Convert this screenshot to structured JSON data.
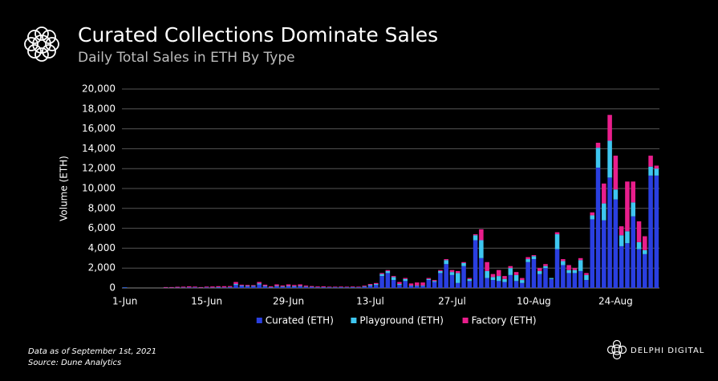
{
  "chart_data": {
    "type": "bar",
    "stacked": true,
    "title": "Curated Collections Dominate Sales",
    "subtitle": "Daily Total Sales in ETH By Type",
    "y_label": "Volume (ETH)",
    "categories": [
      "1-Jun",
      null,
      null,
      null,
      null,
      null,
      null,
      null,
      null,
      null,
      null,
      null,
      null,
      null,
      "15-Jun",
      null,
      null,
      null,
      null,
      null,
      null,
      null,
      null,
      null,
      null,
      null,
      null,
      null,
      "29-Jun",
      null,
      null,
      null,
      null,
      null,
      null,
      null,
      null,
      null,
      null,
      null,
      null,
      null,
      "13-Jul",
      null,
      null,
      null,
      null,
      null,
      null,
      null,
      null,
      null,
      null,
      null,
      null,
      null,
      "27-Jul",
      null,
      null,
      null,
      null,
      null,
      null,
      null,
      null,
      null,
      null,
      null,
      null,
      null,
      "10-Aug",
      null,
      null,
      null,
      null,
      null,
      null,
      null,
      null,
      null,
      null,
      null,
      null,
      null,
      "24-Aug",
      null,
      null,
      null,
      null,
      null,
      null,
      null
    ],
    "series": [
      {
        "name": "Curated (ETH)",
        "color": "#2a3fe0",
        "values": [
          60,
          0,
          0,
          0,
          0,
          0,
          0,
          20,
          20,
          30,
          30,
          40,
          40,
          20,
          40,
          30,
          50,
          40,
          60,
          300,
          200,
          150,
          150,
          350,
          150,
          50,
          150,
          100,
          150,
          120,
          150,
          100,
          80,
          50,
          60,
          50,
          50,
          60,
          50,
          60,
          50,
          100,
          200,
          300,
          1200,
          1500,
          800,
          300,
          700,
          200,
          200,
          200,
          800,
          600,
          1500,
          2400,
          1300,
          500,
          2200,
          700,
          4800,
          3000,
          1000,
          800,
          700,
          600,
          1300,
          700,
          500,
          2600,
          2900,
          1400,
          2000,
          900,
          3900,
          2300,
          1500,
          1500,
          1700,
          800,
          6900,
          12100,
          6800,
          11100,
          8900,
          4200,
          4500,
          7200,
          3900,
          3400,
          11300,
          11300
        ]
      },
      {
        "name": "Playground (ETH)",
        "color": "#3ec6f0",
        "values": [
          20,
          0,
          0,
          0,
          0,
          0,
          0,
          10,
          10,
          10,
          20,
          20,
          20,
          10,
          20,
          20,
          30,
          20,
          30,
          100,
          50,
          50,
          50,
          100,
          60,
          30,
          60,
          50,
          60,
          60,
          60,
          40,
          30,
          20,
          20,
          20,
          20,
          20,
          20,
          30,
          20,
          50,
          100,
          100,
          200,
          200,
          300,
          100,
          200,
          50,
          50,
          50,
          100,
          100,
          200,
          400,
          300,
          1000,
          300,
          200,
          500,
          1800,
          700,
          300,
          500,
          300,
          700,
          600,
          300,
          300,
          300,
          300,
          200,
          100,
          1500,
          400,
          300,
          300,
          1100,
          500,
          400,
          2000,
          1700,
          3700,
          1000,
          1100,
          1200,
          1400,
          700,
          400,
          900,
          700
        ]
      },
      {
        "name": "Factory (ETH)",
        "color": "#e91e8c",
        "values": [
          0,
          0,
          0,
          0,
          0,
          0,
          0,
          60,
          60,
          80,
          80,
          100,
          80,
          60,
          80,
          100,
          100,
          120,
          100,
          200,
          80,
          100,
          80,
          150,
          120,
          80,
          150,
          100,
          150,
          120,
          150,
          100,
          80,
          80,
          80,
          60,
          60,
          60,
          60,
          60,
          60,
          80,
          100,
          100,
          100,
          100,
          100,
          200,
          100,
          200,
          300,
          300,
          100,
          100,
          100,
          100,
          200,
          200,
          100,
          100,
          100,
          1100,
          900,
          300,
          600,
          300,
          200,
          300,
          200,
          200,
          100,
          300,
          200,
          0,
          200,
          200,
          500,
          200,
          200,
          200,
          300,
          500,
          2000,
          2600,
          3400,
          900,
          5000,
          2100,
          2100,
          1400,
          1100,
          300
        ]
      }
    ],
    "ylim": [
      0,
      20000
    ],
    "yticks": [
      0,
      {
        "value": 2000,
        "label": "2,000"
      },
      {
        "value": 4000,
        "label": "4,000"
      },
      {
        "value": 6000,
        "label": "6,000"
      },
      {
        "value": 8000,
        "label": "8,000"
      },
      {
        "value": 10000,
        "label": "10,000"
      },
      {
        "value": 12000,
        "label": "12,000"
      },
      {
        "value": 14000,
        "label": "14,000"
      },
      {
        "value": 16000,
        "label": "16,000"
      },
      {
        "value": 18000,
        "label": "18,000"
      },
      {
        "value": 20000,
        "label": "20,000"
      }
    ],
    "grid": true,
    "legend": "bottom"
  },
  "notes": [
    "Data as of September 1st, 2021",
    "Source: Dune Analytics"
  ],
  "brand": "DELPHI DIGITAL"
}
